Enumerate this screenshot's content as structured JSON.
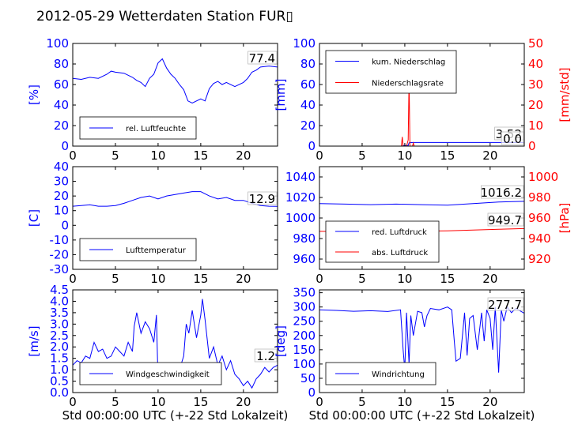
{
  "title": "2012-05-29 Wetterdaten Station FUR▯",
  "colors": {
    "primary": "#0000ff",
    "secondary": "#ff0000",
    "axis": "#000000"
  },
  "chart_data": [
    {
      "id": "humidity",
      "type": "line",
      "ylabel": "[%]",
      "xlim": [
        0,
        24
      ],
      "ylim": [
        0,
        100
      ],
      "xticks": [
        0,
        5,
        10,
        15,
        20
      ],
      "yticks": [
        0,
        20,
        40,
        60,
        80,
        100
      ],
      "last_value_label": "77.4",
      "legend": {
        "placement": "bottom-left",
        "entries": [
          "rel. Luftfeuchte"
        ]
      },
      "series": [
        {
          "name": "rel. Luftfeuchte",
          "axis": "left",
          "color": "#0000ff",
          "x": [
            0,
            1,
            2,
            3,
            4,
            4.5,
            5,
            6,
            7,
            7.5,
            8,
            8.5,
            9,
            9.5,
            10,
            10.5,
            11,
            11.5,
            12,
            12.5,
            13,
            13.5,
            14,
            15,
            15.5,
            16,
            16.5,
            17,
            17.5,
            18,
            19,
            20,
            20.5,
            21,
            21.5,
            22,
            23,
            24
          ],
          "y": [
            66,
            65,
            67,
            66,
            70,
            73,
            72,
            71,
            67,
            64,
            62,
            58,
            66,
            70,
            81,
            85,
            76,
            70,
            66,
            60,
            55,
            44,
            42,
            46,
            44,
            56,
            61,
            63,
            60,
            62,
            58,
            62,
            66,
            72,
            74,
            77,
            78,
            77
          ]
        }
      ]
    },
    {
      "id": "precipitation",
      "type": "line",
      "ylabel": "[mm]",
      "ylabel_right": "[mm/std]",
      "xlim": [
        0,
        24
      ],
      "ylim": [
        0,
        100
      ],
      "ylim_right": [
        0,
        50
      ],
      "xticks": [
        0,
        5,
        10,
        15,
        20
      ],
      "yticks": [
        0,
        20,
        40,
        60,
        80,
        100
      ],
      "yticks_right": [
        0,
        10,
        20,
        30,
        40,
        50
      ],
      "last_value_labels": [
        "3.52",
        "0.0"
      ],
      "legend": {
        "placement": "top-left",
        "entries": [
          "kum. Niederschlag",
          "Niederschlagsrate"
        ]
      },
      "series": [
        {
          "name": "kum. Niederschlag",
          "axis": "left",
          "color": "#0000ff",
          "x": [
            0,
            9.7,
            9.8,
            10.4,
            10.5,
            10.6,
            11,
            24
          ],
          "y": [
            0,
            0,
            0.6,
            0.8,
            3.2,
            3.4,
            3.52,
            3.52
          ]
        },
        {
          "name": "Niederschlagsrate",
          "axis": "right",
          "color": "#ff0000",
          "x": [
            0,
            9.6,
            9.7,
            9.8,
            10.2,
            10.4,
            10.5,
            10.6,
            10.9,
            11.0,
            11.1,
            24
          ],
          "y": [
            0,
            0,
            4.5,
            0,
            0,
            3,
            33,
            0,
            0,
            1.5,
            0,
            0
          ]
        }
      ]
    },
    {
      "id": "temperature",
      "type": "line",
      "ylabel": "[C]",
      "xlim": [
        0,
        24
      ],
      "ylim": [
        -30,
        40
      ],
      "xticks": [
        0,
        5,
        10,
        15,
        20
      ],
      "yticks": [
        -30,
        -20,
        -10,
        0,
        10,
        20,
        30,
        40
      ],
      "last_value_label": "12.9",
      "legend": {
        "placement": "bottom-left",
        "entries": [
          "Lufttemperatur"
        ]
      },
      "series": [
        {
          "name": "Lufttemperatur",
          "axis": "left",
          "color": "#0000ff",
          "x": [
            0,
            1,
            2,
            3,
            4,
            5,
            6,
            7,
            8,
            9,
            10,
            11,
            12,
            13,
            14,
            15,
            16,
            17,
            18,
            19,
            20,
            21,
            22,
            23,
            24
          ],
          "y": [
            13,
            13.5,
            14,
            13,
            13,
            13.5,
            15,
            17,
            19,
            20,
            18,
            20,
            21,
            22,
            23,
            23,
            20,
            18,
            19,
            17,
            17,
            15,
            13.5,
            13,
            12.9
          ]
        }
      ]
    },
    {
      "id": "pressure",
      "type": "line",
      "ylabel_right": "[hPa]",
      "xlim": [
        0,
        24
      ],
      "ylim": [
        950,
        1050
      ],
      "ylim_right": [
        910,
        1010
      ],
      "xticks": [
        0,
        5,
        10,
        15,
        20
      ],
      "yticks": [
        960,
        980,
        1000,
        1020,
        1040
      ],
      "yticks_right": [
        920,
        940,
        960,
        980,
        1000
      ],
      "last_value_labels": [
        "1016.2",
        "949.7"
      ],
      "legend": {
        "placement": "bottom-left",
        "entries": [
          "red. Luftdruck",
          "abs. Luftdruck"
        ]
      },
      "series": [
        {
          "name": "red. Luftdruck",
          "axis": "left",
          "color": "#0000ff",
          "x": [
            0,
            3,
            6,
            9,
            12,
            15,
            18,
            21,
            24
          ],
          "y": [
            1014,
            1013.5,
            1013,
            1013.5,
            1013,
            1012.5,
            1014,
            1015.5,
            1016.2
          ]
        },
        {
          "name": "abs. Luftdruck",
          "axis": "right",
          "color": "#ff0000",
          "x": [
            0,
            3,
            6,
            9,
            12,
            15,
            18,
            21,
            24
          ],
          "y": [
            947,
            946.8,
            946.8,
            947,
            947.2,
            947.5,
            948.2,
            949,
            949.7
          ]
        }
      ]
    },
    {
      "id": "windspeed",
      "type": "line",
      "ylabel": "[m/s]",
      "xlabel": "Std 00:00:00 UTC (+-22 Std Lokalzeit)",
      "xlim": [
        0,
        24
      ],
      "ylim": [
        0,
        4.5
      ],
      "xticks": [
        0,
        5,
        10,
        15,
        20
      ],
      "yticks": [
        0.0,
        0.5,
        1.0,
        1.5,
        2.0,
        2.5,
        3.0,
        3.5,
        4.0,
        4.5
      ],
      "ytick_labels": [
        "0.0",
        "0.5",
        "1.0",
        "1.5",
        "2.0",
        "2.5",
        "3.0",
        "3.5",
        "4.0",
        "4.5"
      ],
      "last_value_label": "1.2",
      "legend": {
        "placement": "bottom-center",
        "entries": [
          "Windgeschwindigkeit"
        ]
      },
      "series": [
        {
          "name": "Windgeschwindigkeit",
          "axis": "left",
          "color": "#0000ff",
          "x": [
            0,
            0.5,
            1,
            1.5,
            2,
            2.5,
            3,
            3.5,
            4,
            4.5,
            5,
            5.5,
            6,
            6.5,
            7,
            7.2,
            7.5,
            8,
            8.5,
            9,
            9.5,
            9.8,
            10,
            10.3,
            10.6,
            11,
            11.5,
            12,
            12.5,
            13,
            13.3,
            13.6,
            14,
            14.5,
            15,
            15.2,
            15.5,
            16,
            16.5,
            17,
            17.5,
            18,
            18.5,
            19,
            19.5,
            20,
            20.5,
            21,
            21.5,
            22,
            22.5,
            23,
            23.5,
            24
          ],
          "y": [
            1.2,
            1.4,
            1.3,
            1.6,
            1.5,
            2.2,
            1.8,
            1.9,
            1.5,
            1.6,
            2.0,
            1.8,
            1.6,
            2.2,
            1.8,
            2.9,
            3.5,
            2.6,
            3.1,
            2.8,
            2.2,
            3.4,
            0.5,
            1.0,
            0.4,
            0.8,
            0.6,
            1.2,
            1.0,
            1.6,
            3.0,
            2.6,
            3.6,
            2.4,
            3.4,
            4.1,
            3.2,
            1.5,
            2.0,
            1.2,
            1.6,
            1.0,
            1.4,
            0.8,
            0.6,
            0.3,
            0.5,
            0.2,
            0.6,
            0.8,
            1.1,
            0.9,
            1.1,
            1.2
          ]
        }
      ]
    },
    {
      "id": "winddirection",
      "type": "line",
      "ylabel": "[deg]",
      "xlabel": "Std 00:00:00 UTC (+-22 Std Lokalzeit)",
      "xlim": [
        0,
        24
      ],
      "ylim": [
        0,
        360
      ],
      "xticks": [
        0,
        5,
        10,
        15,
        20
      ],
      "yticks": [
        0,
        50,
        100,
        150,
        200,
        250,
        300,
        350
      ],
      "last_value_label": "277.7",
      "legend": {
        "placement": "bottom-left",
        "entries": [
          "Windrichtung"
        ]
      },
      "series": [
        {
          "name": "Windrichtung",
          "axis": "left",
          "color": "#0000ff",
          "x": [
            0,
            2,
            4,
            6,
            8,
            9.5,
            9.8,
            10,
            10.2,
            10.5,
            10.7,
            11,
            11.5,
            12,
            12.3,
            12.6,
            13,
            14,
            15,
            15.5,
            15.8,
            16,
            16.5,
            17,
            17.3,
            17.6,
            18,
            18.5,
            19,
            19.3,
            19.6,
            20,
            20.3,
            20.6,
            21,
            21.3,
            21.6,
            22,
            22.5,
            23,
            24
          ],
          "y": [
            290,
            288,
            285,
            287,
            284,
            290,
            150,
            80,
            280,
            100,
            270,
            200,
            285,
            280,
            230,
            270,
            295,
            290,
            300,
            290,
            180,
            110,
            120,
            280,
            130,
            260,
            270,
            150,
            280,
            180,
            290,
            260,
            150,
            300,
            70,
            290,
            250,
            300,
            280,
            295,
            278
          ]
        }
      ]
    }
  ]
}
